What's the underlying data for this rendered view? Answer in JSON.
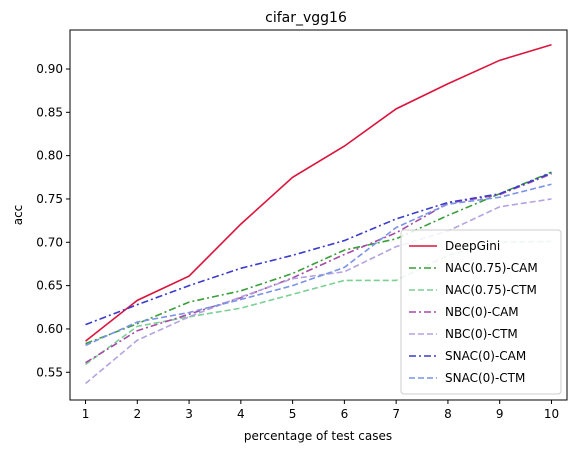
{
  "chart_data": {
    "type": "line",
    "title": "cifar_vgg16",
    "xlabel": "percentage of test cases",
    "ylabel": "acc",
    "x": [
      1,
      2,
      3,
      4,
      5,
      6,
      7,
      8,
      9,
      10
    ],
    "xlim": [
      0.7,
      10.3
    ],
    "ylim": [
      0.518,
      0.945
    ],
    "yticks": [
      "0.55",
      "0.60",
      "0.65",
      "0.70",
      "0.75",
      "0.80",
      "0.85",
      "0.90"
    ],
    "xticks": [
      "1",
      "2",
      "3",
      "4",
      "5",
      "6",
      "7",
      "8",
      "9",
      "10"
    ],
    "legend_position": "lower-right",
    "grid": false,
    "series": [
      {
        "name": "DeepGini",
        "color": "#dc143c",
        "dash": "solid",
        "values": [
          0.586,
          0.633,
          0.661,
          0.721,
          0.775,
          0.811,
          0.854,
          0.883,
          0.91,
          0.928
        ]
      },
      {
        "name": "NAC(0.75)-CAM",
        "color": "#3a9e3a",
        "dash": "dashdot",
        "values": [
          0.583,
          0.606,
          0.631,
          0.644,
          0.664,
          0.691,
          0.704,
          0.731,
          0.756,
          0.781
        ]
      },
      {
        "name": "NAC(0.75)-CTM",
        "color": "#7ccf95",
        "dash": "dashed",
        "values": [
          0.559,
          0.603,
          0.614,
          0.624,
          0.64,
          0.656,
          0.656,
          0.685,
          0.7,
          0.701
        ]
      },
      {
        "name": "NBC(0)-CAM",
        "color": "#a64ca6",
        "dash": "dashdot",
        "values": [
          0.561,
          0.598,
          0.617,
          0.636,
          0.659,
          0.686,
          0.711,
          0.745,
          0.755,
          0.779
        ]
      },
      {
        "name": "NBC(0)-CTM",
        "color": "#b4a3e0",
        "dash": "dashed",
        "values": [
          0.537,
          0.587,
          0.614,
          0.637,
          0.658,
          0.666,
          0.695,
          0.713,
          0.741,
          0.75
        ]
      },
      {
        "name": "SNAC(0)-CAM",
        "color": "#3b3bcc",
        "dash": "dashdot",
        "values": [
          0.605,
          0.628,
          0.65,
          0.67,
          0.685,
          0.702,
          0.727,
          0.746,
          0.756,
          0.78
        ]
      },
      {
        "name": "SNAC(0)-CTM",
        "color": "#7a93e6",
        "dash": "dashed",
        "values": [
          0.581,
          0.608,
          0.619,
          0.634,
          0.65,
          0.671,
          0.717,
          0.744,
          0.752,
          0.767
        ]
      }
    ]
  }
}
